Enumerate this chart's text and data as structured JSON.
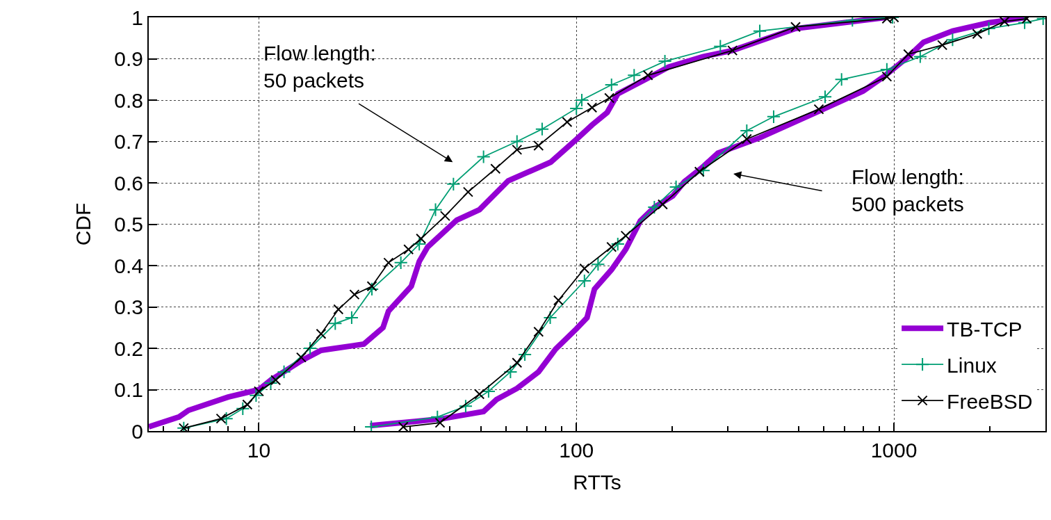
{
  "chart_data": {
    "type": "line",
    "xlabel": "RTTs",
    "ylabel": "CDF",
    "log": "x",
    "grid": true,
    "legend": "bottom right",
    "xlim": [
      4.5,
      3000
    ],
    "ylim": [
      0,
      1
    ],
    "xticks": [
      {
        "value": 5,
        "label": null
      },
      {
        "value": 6,
        "label": null
      },
      {
        "value": 7,
        "label": null
      },
      {
        "value": 8,
        "label": null
      },
      {
        "value": 9,
        "label": null
      },
      10,
      {
        "value": 20,
        "label": null
      },
      {
        "value": 30,
        "label": null
      },
      {
        "value": 40,
        "label": null
      },
      {
        "value": 50,
        "label": null
      },
      {
        "value": 60,
        "label": null
      },
      {
        "value": 70,
        "label": null
      },
      {
        "value": 80,
        "label": null
      },
      {
        "value": 90,
        "label": null
      },
      100,
      {
        "value": 200,
        "label": null
      },
      {
        "value": 300,
        "label": null
      },
      {
        "value": 400,
        "label": null
      },
      {
        "value": 500,
        "label": null
      },
      {
        "value": 600,
        "label": null
      },
      {
        "value": 700,
        "label": null
      },
      {
        "value": 800,
        "label": null
      },
      {
        "value": 900,
        "label": null
      },
      1000,
      {
        "value": 2000,
        "label": null
      },
      {
        "value": 3000,
        "label": null
      }
    ],
    "yticks": [
      0,
      0.1,
      0.2,
      0.3,
      0.4,
      0.5,
      0.6,
      0.7,
      0.8,
      0.9,
      1
    ],
    "annotations": [
      "Flow length:\n50 packets",
      "Flow length:\n500 packets"
    ],
    "series": [
      {
        "name": "TB-TCP",
        "color": "#9400d3",
        "marker": "none",
        "x": [
          4.5,
          5.6,
          6.0,
          8.0,
          10,
          10.9,
          13.6,
          15.7,
          21.4,
          24.6,
          25.6,
          30.2,
          32,
          34,
          42,
          49.5,
          61,
          83,
          100,
          112,
          125,
          135,
          165,
          195,
          250,
          310,
          490,
          950
        ],
        "values": [
          0.01,
          0.034,
          0.05,
          0.082,
          0.1,
          0.123,
          0.17,
          0.195,
          0.21,
          0.25,
          0.29,
          0.35,
          0.41,
          0.445,
          0.51,
          0.535,
          0.605,
          0.65,
          0.705,
          0.74,
          0.77,
          0.815,
          0.85,
          0.88,
          0.905,
          0.92,
          0.973,
          1.0
        ]
      },
      {
        "name": "Linux",
        "color": "#009e73",
        "marker": "cross",
        "x": [
          5.8,
          7.9,
          8.9,
          9.8,
          10.9,
          12,
          14.5,
          17.4,
          19.6,
          22.7,
          28,
          32,
          36,
          41,
          51,
          65,
          78,
          100,
          104,
          129,
          152,
          190,
          284,
          378,
          740,
          990
        ],
        "values": [
          0.007,
          0.03,
          0.054,
          0.086,
          0.116,
          0.143,
          0.2,
          0.26,
          0.274,
          0.343,
          0.407,
          0.452,
          0.535,
          0.597,
          0.663,
          0.7,
          0.73,
          0.78,
          0.8,
          0.837,
          0.86,
          0.894,
          0.93,
          0.967,
          0.993,
          1.0
        ]
      },
      {
        "name": "FreeBSD",
        "color": "#000000",
        "marker": "x",
        "x": [
          5.8,
          7.6,
          9.2,
          10,
          11.3,
          13.6,
          15.7,
          17.8,
          20,
          22.7,
          25.6,
          29.6,
          32.4,
          38.6,
          45.6,
          55.6,
          65,
          76,
          93.5,
          112,
          127,
          168,
          310,
          490,
          950,
          1000
        ],
        "values": [
          0.007,
          0.03,
          0.064,
          0.096,
          0.123,
          0.178,
          0.235,
          0.294,
          0.33,
          0.35,
          0.407,
          0.439,
          0.465,
          0.52,
          0.578,
          0.634,
          0.68,
          0.69,
          0.747,
          0.782,
          0.805,
          0.86,
          0.92,
          0.977,
          0.997,
          1.0
        ]
      },
      {
        "color": "#9400d3",
        "marker": "none",
        "x": [
          22.4,
          31,
          38,
          51,
          56,
          65,
          76,
          86,
          100,
          108,
          114,
          129,
          143,
          159,
          176,
          201,
          219,
          249,
          279,
          378,
          560,
          800,
          930,
          1110,
          1240,
          1530,
          1990,
          2620
        ],
        "values": [
          0.013,
          0.023,
          0.03,
          0.047,
          0.076,
          0.103,
          0.143,
          0.198,
          0.247,
          0.274,
          0.343,
          0.39,
          0.439,
          0.508,
          0.541,
          0.568,
          0.603,
          0.637,
          0.672,
          0.709,
          0.768,
          0.822,
          0.857,
          0.905,
          0.94,
          0.967,
          0.987,
          1.0
        ]
      },
      {
        "color": "#009e73",
        "marker": "cross",
        "x": [
          22.6,
          36.5,
          44.8,
          52.9,
          62,
          68.8,
          82.7,
          106,
          117,
          135,
          176,
          206,
          251,
          344,
          418,
          607,
          684,
          950,
          1210,
          1530,
          1990,
          2580,
          2950
        ],
        "values": [
          0.01,
          0.034,
          0.06,
          0.096,
          0.143,
          0.185,
          0.274,
          0.363,
          0.403,
          0.452,
          0.541,
          0.59,
          0.63,
          0.726,
          0.76,
          0.808,
          0.85,
          0.874,
          0.905,
          0.946,
          0.973,
          0.987,
          0.997
        ]
      },
      {
        "color": "#000000",
        "marker": "x",
        "x": [
          28.5,
          37.2,
          49.5,
          65,
          76,
          87.8,
          106,
          129,
          143,
          187,
          244,
          344,
          580,
          950,
          1110,
          1420,
          1830,
          2230,
          2620
        ],
        "values": [
          0.01,
          0.02,
          0.089,
          0.165,
          0.24,
          0.316,
          0.393,
          0.445,
          0.472,
          0.548,
          0.627,
          0.706,
          0.778,
          0.857,
          0.911,
          0.933,
          0.96,
          0.99,
          0.997
        ]
      }
    ]
  }
}
